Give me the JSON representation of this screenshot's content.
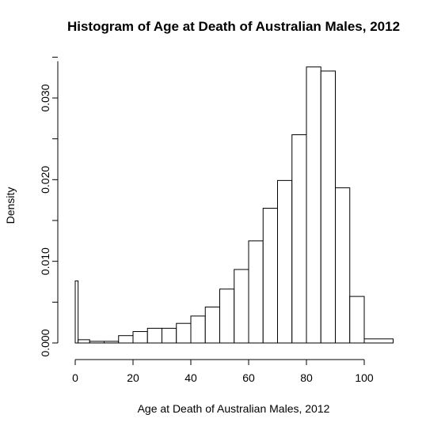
{
  "chart_data": {
    "type": "bar",
    "title": "Histogram of Age at Death of Australian Males, 2012",
    "xlabel": "Age at Death of Australian Males, 2012",
    "ylabel": "Density",
    "xlim": [
      0,
      110
    ],
    "ylim": [
      0,
      0.035
    ],
    "x_ticks": [
      "0",
      "20",
      "40",
      "60",
      "80",
      "100"
    ],
    "x_tick_values": [
      0,
      20,
      40,
      60,
      80,
      100
    ],
    "y_ticks": [
      "0.000",
      "0.010",
      "0.020",
      "0.030"
    ],
    "y_tick_values": [
      0,
      0.01,
      0.02,
      0.03
    ],
    "bins": [
      {
        "start": 0,
        "end": 1,
        "density": 0.0076
      },
      {
        "start": 1,
        "end": 5,
        "density": 0.0004
      },
      {
        "start": 5,
        "end": 10,
        "density": 0.0002
      },
      {
        "start": 10,
        "end": 15,
        "density": 0.0002
      },
      {
        "start": 15,
        "end": 20,
        "density": 0.0009
      },
      {
        "start": 20,
        "end": 25,
        "density": 0.0014
      },
      {
        "start": 25,
        "end": 30,
        "density": 0.0018
      },
      {
        "start": 30,
        "end": 35,
        "density": 0.0018
      },
      {
        "start": 35,
        "end": 40,
        "density": 0.0024
      },
      {
        "start": 40,
        "end": 45,
        "density": 0.0033
      },
      {
        "start": 45,
        "end": 50,
        "density": 0.0044
      },
      {
        "start": 50,
        "end": 55,
        "density": 0.0066
      },
      {
        "start": 55,
        "end": 60,
        "density": 0.009
      },
      {
        "start": 60,
        "end": 65,
        "density": 0.0125
      },
      {
        "start": 65,
        "end": 70,
        "density": 0.0165
      },
      {
        "start": 70,
        "end": 75,
        "density": 0.0199
      },
      {
        "start": 75,
        "end": 80,
        "density": 0.0255
      },
      {
        "start": 80,
        "end": 85,
        "density": 0.0338
      },
      {
        "start": 85,
        "end": 90,
        "density": 0.0333
      },
      {
        "start": 90,
        "end": 95,
        "density": 0.019
      },
      {
        "start": 95,
        "end": 100,
        "density": 0.0057
      },
      {
        "start": 100,
        "end": 110,
        "density": 0.0005
      }
    ],
    "grid": false,
    "legend": "none"
  }
}
